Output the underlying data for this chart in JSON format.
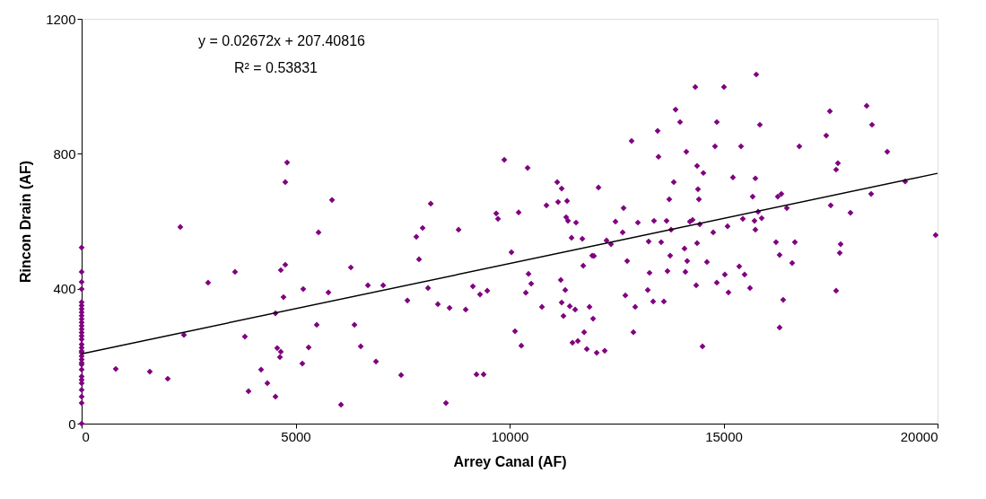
{
  "chart_data": {
    "type": "scatter",
    "xlabel": "Arrey Canal (AF)",
    "ylabel": "Rincon Drain (AF)",
    "xlim": [
      0,
      20000
    ],
    "ylim": [
      0,
      1200
    ],
    "xticks": [
      0,
      5000,
      10000,
      15000,
      20000
    ],
    "yticks": [
      0,
      400,
      800,
      1200
    ],
    "annotations": [
      "y = 0.02672x + 207.40816",
      "R² = 0.53831"
    ],
    "series": [
      {
        "color": "#800080",
        "marker": "diamond",
        "x": [
          0,
          0,
          0,
          0,
          0,
          0,
          0,
          0,
          0,
          0,
          0,
          0,
          0,
          0,
          0,
          0,
          0,
          0,
          0,
          0,
          0,
          0,
          0,
          0,
          0,
          0,
          0,
          0,
          0,
          0,
          0,
          0,
          797,
          1593,
          2012,
          2306,
          2390,
          2955,
          3584,
          3815,
          3899,
          4193,
          4340,
          4529,
          4529,
          4570,
          4633,
          4654,
          4654,
          4717,
          4759,
          4759,
          4801,
          5157,
          5178,
          5304,
          5493,
          5535,
          5766,
          5850,
          6060,
          6291,
          6375,
          6522,
          6689,
          6878,
          7046,
          7465,
          7612,
          7821,
          7884,
          7968,
          8094,
          8157,
          8324,
          8513,
          8597,
          8807,
          8974,
          9142,
          9226,
          9309,
          9393,
          9478,
          9687,
          9729,
          9876,
          10044,
          10127,
          10211,
          10274,
          10379,
          10421,
          10442,
          10505,
          10756,
          10861,
          11113,
          11133,
          11196,
          11217,
          11217,
          11259,
          11301,
          11322,
          11343,
          11364,
          11406,
          11448,
          11469,
          11532,
          11553,
          11595,
          11700,
          11721,
          11742,
          11804,
          11867,
          11930,
          11951,
          11972,
          12035,
          12077,
          12223,
          12265,
          12370,
          12474,
          12642,
          12663,
          12705,
          12747,
          12851,
          12893,
          12935,
          12998,
          13228,
          13249,
          13270,
          13354,
          13375,
          13459,
          13479,
          13542,
          13605,
          13668,
          13689,
          13731,
          13752,
          13773,
          13836,
          13878,
          13983,
          14087,
          14108,
          14129,
          14150,
          14213,
          14276,
          14339,
          14360,
          14381,
          14381,
          14402,
          14423,
          14444,
          14507,
          14528,
          14611,
          14758,
          14800,
          14842,
          14842,
          15009,
          15030,
          15093,
          15114,
          15219,
          15366,
          15408,
          15450,
          15491,
          15617,
          15680,
          15722,
          15743,
          15743,
          15764,
          15806,
          15848,
          15890,
          16225,
          16267,
          16309,
          16309,
          16351,
          16393,
          16477,
          16603,
          16666,
          16770,
          17399,
          17483,
          17504,
          17630,
          17630,
          17672,
          17714,
          17735,
          17965,
          18343,
          18448,
          18469,
          18825,
          19244,
          19955
        ],
        "values": [
          0,
          61,
          80,
          100,
          120,
          130,
          140,
          160,
          175,
          180,
          190,
          200,
          210,
          215,
          225,
          235,
          250,
          260,
          270,
          280,
          290,
          300,
          310,
          320,
          330,
          340,
          350,
          360,
          399,
          420,
          450,
          522,
          162,
          154,
          133,
          583,
          263,
          418,
          450,
          258,
          96,
          160,
          120,
          80,
          327,
          224,
          197,
          213,
          455,
          375,
          471,
          716,
          774,
          178,
          399,
          226,
          293,
          567,
          389,
          663,
          56,
          463,
          293,
          229,
          410,
          184,
          410,
          144,
          365,
          554,
          487,
          580,
          402,
          652,
          354,
          61,
          343,
          575,
          338,
          407,
          146,
          383,
          146,
          394,
          623,
          607,
          782,
          508,
          274,
          626,
          231,
          388,
          758,
          444,
          415,
          346,
          647,
          716,
          657,
          426,
          359,
          697,
          319,
          396,
          612,
          660,
          601,
          348,
          551,
          240,
          338,
          596,
          245,
          548,
          468,
          271,
          221,
          346,
          498,
          311,
          497,
          210,
          700,
          216,
          543,
          532,
          599,
          567,
          639,
          380,
          482,
          838,
          271,
          346,
          596,
          396,
          540,
          447,
          362,
          601,
          868,
          791,
          538,
          362,
          601,
          452,
          665,
          498,
          575,
          716,
          931,
          894,
          519,
          450,
          806,
          482,
          599,
          604,
          998,
          410,
          764,
          535,
          695,
          665,
          591,
          229,
          743,
          479,
          567,
          822,
          418,
          894,
          998,
          442,
          585,
          389,
          730,
          466,
          822,
          607,
          442,
          402,
          673,
          601,
          575,
          727,
          1035,
          628,
          886,
          609,
          538,
          673,
          500,
          285,
          681,
          367,
          639,
          476,
          538,
          822,
          854,
          926,
          647,
          394,
          753,
          772,
          506,
          532,
          625,
          942,
          681,
          886,
          806,
          718,
          559
        ]
      },
      {
        "type": "line",
        "color": "#000000",
        "line_style": "solid",
        "marker": "none",
        "x": [
          0,
          20000
        ],
        "values": [
          207,
          742
        ]
      }
    ]
  }
}
